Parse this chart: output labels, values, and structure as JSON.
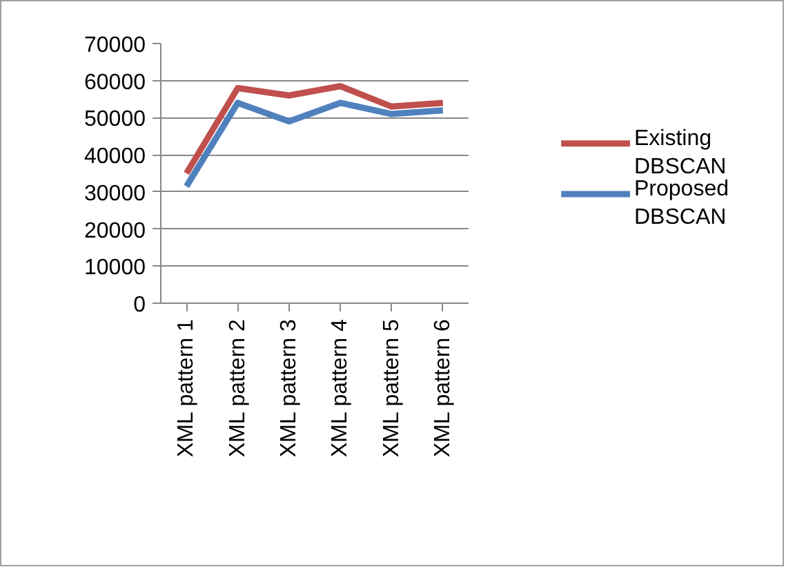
{
  "chart_data": {
    "type": "line",
    "categories": [
      "XML pattern 1",
      "XML pattern 2",
      "XML pattern 3",
      "XML pattern 4",
      "XML pattern 5",
      "XML pattern 6"
    ],
    "series": [
      {
        "name": "Existing DBSCAN",
        "color": "#c0504d",
        "values": [
          35000,
          58000,
          56000,
          58500,
          53000,
          54000
        ]
      },
      {
        "name": "Proposed DBSCAN",
        "color": "#4f81bd",
        "values": [
          31500,
          54000,
          49000,
          54000,
          51000,
          52000
        ]
      }
    ],
    "ylim": [
      0,
      70000
    ],
    "yticks": [
      0,
      10000,
      20000,
      30000,
      40000,
      50000,
      60000,
      70000
    ],
    "grid": "y",
    "legend": "right",
    "marker": "none",
    "line_style": "solid"
  }
}
